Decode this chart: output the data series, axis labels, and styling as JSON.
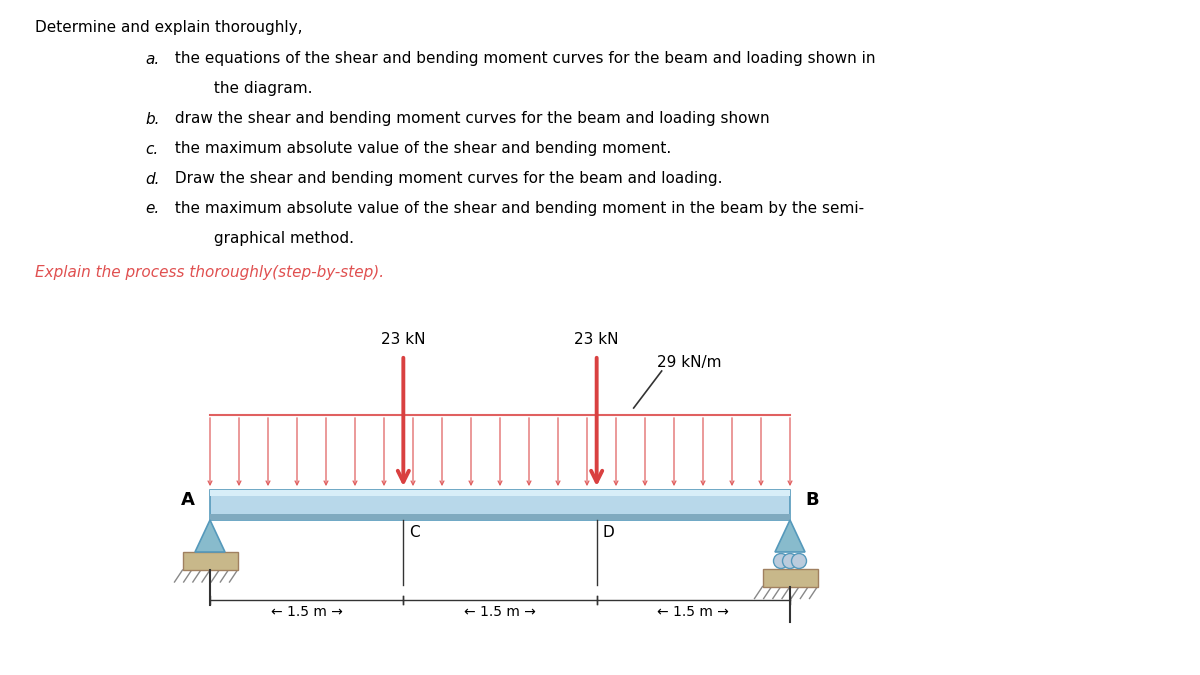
{
  "bg_color": "#ffffff",
  "text_color": "#000000",
  "arrow_color": "#e06060",
  "big_arrow_color": "#d94040",
  "beam_fill": "#b8d8ea",
  "beam_edge": "#5599bb",
  "support_fill": "#88bbcc",
  "support_edge": "#5599bb",
  "ground_fill": "#c8b88a",
  "ground_edge": "#a08060",
  "italic_red": "#e05050",
  "title": "Determine and explain thoroughly,",
  "italic_line": "Explain the process thoroughly(step-by-step).",
  "force_label_1": "23 kN",
  "force_label_2": "23 kN",
  "dist_load_label": "29 kN/m",
  "label_A": "A",
  "label_B": "B",
  "label_C": "C",
  "label_D": "D",
  "dim_1": "← 1.5 m →",
  "dim_2": "← 1.5 m →",
  "dim_3": "← 1.5 m →",
  "num_dist_arrows": 21,
  "items": [
    [
      "a.",
      " the equations of the shear and bending moment curves for the beam and loading shown in",
      "         the diagram."
    ],
    [
      "b.",
      " draw the shear and bending moment curves for the beam and loading shown",
      ""
    ],
    [
      "c.",
      " the maximum absolute value of the shear and bending moment.",
      ""
    ],
    [
      "d.",
      " Draw the shear and bending moment curves for the beam and loading.",
      ""
    ],
    [
      "e.",
      " the maximum absolute value of the shear and bending moment in the beam by the semi-",
      "         graphical method."
    ]
  ]
}
